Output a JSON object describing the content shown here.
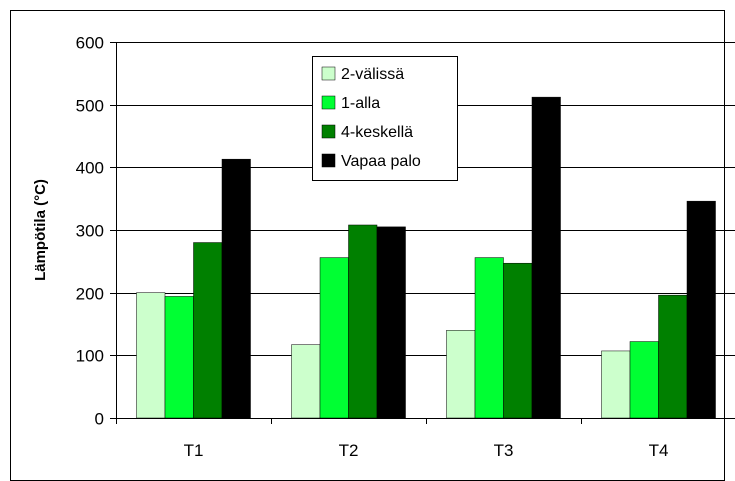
{
  "chart_data": {
    "type": "bar",
    "categories": [
      "T1",
      "T2",
      "T3",
      "T4"
    ],
    "series": [
      {
        "name": "2-välissä",
        "color": "#ccffcc",
        "values": [
          200,
          117,
          140,
          107
        ]
      },
      {
        "name": "1-alla",
        "color": "#00ff33",
        "values": [
          194,
          256,
          256,
          122
        ]
      },
      {
        "name": "4-keskellä",
        "color": "#008000",
        "values": [
          280,
          308,
          247,
          196
        ]
      },
      {
        "name": "Vapaa palo",
        "color": "#000000",
        "values": [
          413,
          305,
          512,
          346
        ]
      }
    ],
    "title": "",
    "xlabel": "",
    "ylabel": "Lämpötila (°C)",
    "ylim": [
      0,
      600
    ],
    "yticks": [
      0,
      100,
      200,
      300,
      400,
      500,
      600
    ],
    "grid": true,
    "legend_position": "top-center"
  }
}
